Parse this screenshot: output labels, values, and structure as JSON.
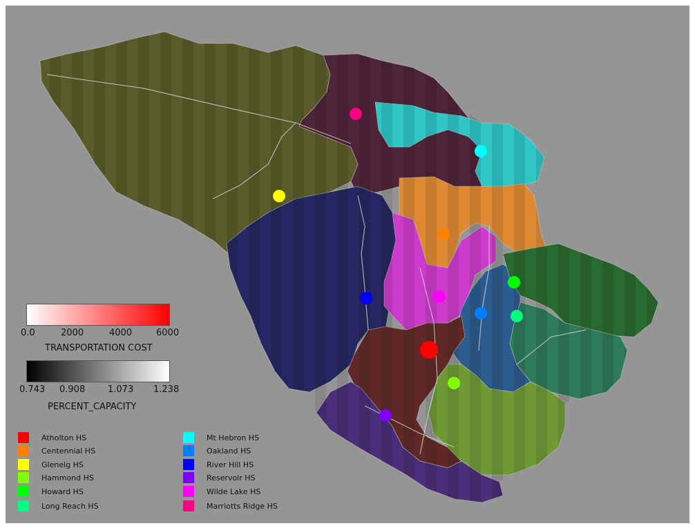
{
  "ramps": {
    "transportation": {
      "title": "TRANSPORTATION COST",
      "ticks": [
        "0.0",
        "2000",
        "4000",
        "6000"
      ],
      "start_color": "#ffffff",
      "end_color": "#ff0000"
    },
    "capacity": {
      "title": "PERCENT_CAPACITY",
      "ticks": [
        "0.743",
        "0.908",
        "1.073",
        "1.238"
      ],
      "start_color": "#000000",
      "end_color": "#ffffff"
    }
  },
  "legend": [
    {
      "label": "Atholton HS",
      "color": "#ff0000"
    },
    {
      "label": "Centennial HS",
      "color": "#ff8000"
    },
    {
      "label": "Glenelg HS",
      "color": "#ffff00"
    },
    {
      "label": "Hammond HS",
      "color": "#80ff00"
    },
    {
      "label": "Howard HS",
      "color": "#00ff00"
    },
    {
      "label": "Long Reach HS",
      "color": "#00ff80"
    },
    {
      "label": "Mt Hebron HS",
      "color": "#00ffff"
    },
    {
      "label": "Oakland HS",
      "color": "#0080ff"
    },
    {
      "label": "River Hill HS",
      "color": "#0000ff"
    },
    {
      "label": "Reservoir HS",
      "color": "#8000ff"
    },
    {
      "label": "Wilde Lake HS",
      "color": "#ff00ff"
    },
    {
      "label": "Marriotts Ridge HS",
      "color": "#ff0080"
    }
  ],
  "districts": [
    {
      "school": "Glenelg HS",
      "fill": "#5a5a2a"
    },
    {
      "school": "Marriotts Ridge HS",
      "fill": "#4e2438"
    },
    {
      "school": "Mt Hebron HS",
      "fill": "#2fc6c6"
    },
    {
      "school": "River Hill HS",
      "fill": "#262660"
    },
    {
      "school": "Centennial HS",
      "fill": "#de8a35"
    },
    {
      "school": "Wilde Lake HS",
      "fill": "#cb3ccb"
    },
    {
      "school": "Oakland HS",
      "fill": "#2c5b8e"
    },
    {
      "school": "Howard HS",
      "fill": "#2a6a30"
    },
    {
      "school": "Long Reach HS",
      "fill": "#2e7a5a"
    },
    {
      "school": "Atholton HS",
      "fill": "#5f2a26"
    },
    {
      "school": "Hammond HS",
      "fill": "#6e9a35"
    },
    {
      "school": "Reservoir HS",
      "fill": "#4a2e78"
    }
  ],
  "schools": [
    {
      "school": "Marriotts Ridge HS",
      "color": "#ff0080",
      "size": "normal"
    },
    {
      "school": "Mt Hebron HS",
      "color": "#00ffff",
      "size": "normal"
    },
    {
      "school": "Glenelg HS",
      "color": "#ffff00",
      "size": "normal"
    },
    {
      "school": "Centennial HS",
      "color": "#ff8000",
      "size": "normal"
    },
    {
      "school": "Howard HS",
      "color": "#00ff00",
      "size": "normal"
    },
    {
      "school": "River Hill HS",
      "color": "#0000ff",
      "size": "normal"
    },
    {
      "school": "Wilde Lake HS",
      "color": "#ff00ff",
      "size": "normal"
    },
    {
      "school": "Oakland HS",
      "color": "#0080ff",
      "size": "normal"
    },
    {
      "school": "Long Reach HS",
      "color": "#00ff80",
      "size": "normal"
    },
    {
      "school": "Atholton HS",
      "color": "#ff0000",
      "size": "large"
    },
    {
      "school": "Hammond HS",
      "color": "#80ff00",
      "size": "normal"
    },
    {
      "school": "Reservoir HS",
      "color": "#8000ff",
      "size": "normal"
    }
  ]
}
